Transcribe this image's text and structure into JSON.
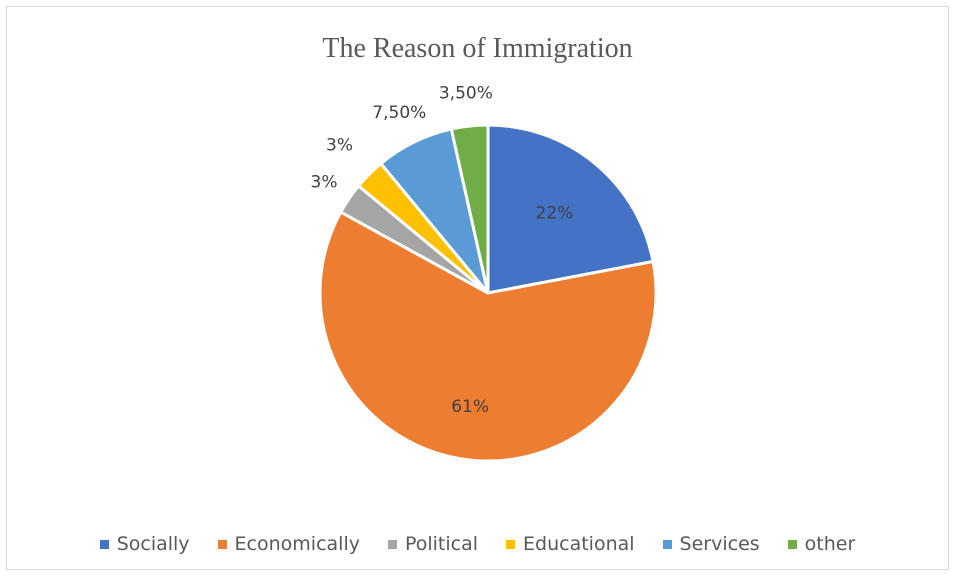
{
  "chart_data": {
    "type": "pie",
    "title": "The Reason of Immigration",
    "categories": [
      "Socially",
      "Economically",
      "Political",
      "Educational",
      "Services",
      "other"
    ],
    "values": [
      22,
      61,
      3,
      3,
      7.5,
      3.5
    ],
    "data_labels": [
      "22%",
      "61%",
      "3%",
      "3%",
      "7,50%",
      "3,50%"
    ],
    "colors": [
      "#4472c4",
      "#ed7d31",
      "#a5a5a5",
      "#ffc000",
      "#5b9bd5",
      "#70ad47"
    ],
    "legend_position": "bottom"
  }
}
